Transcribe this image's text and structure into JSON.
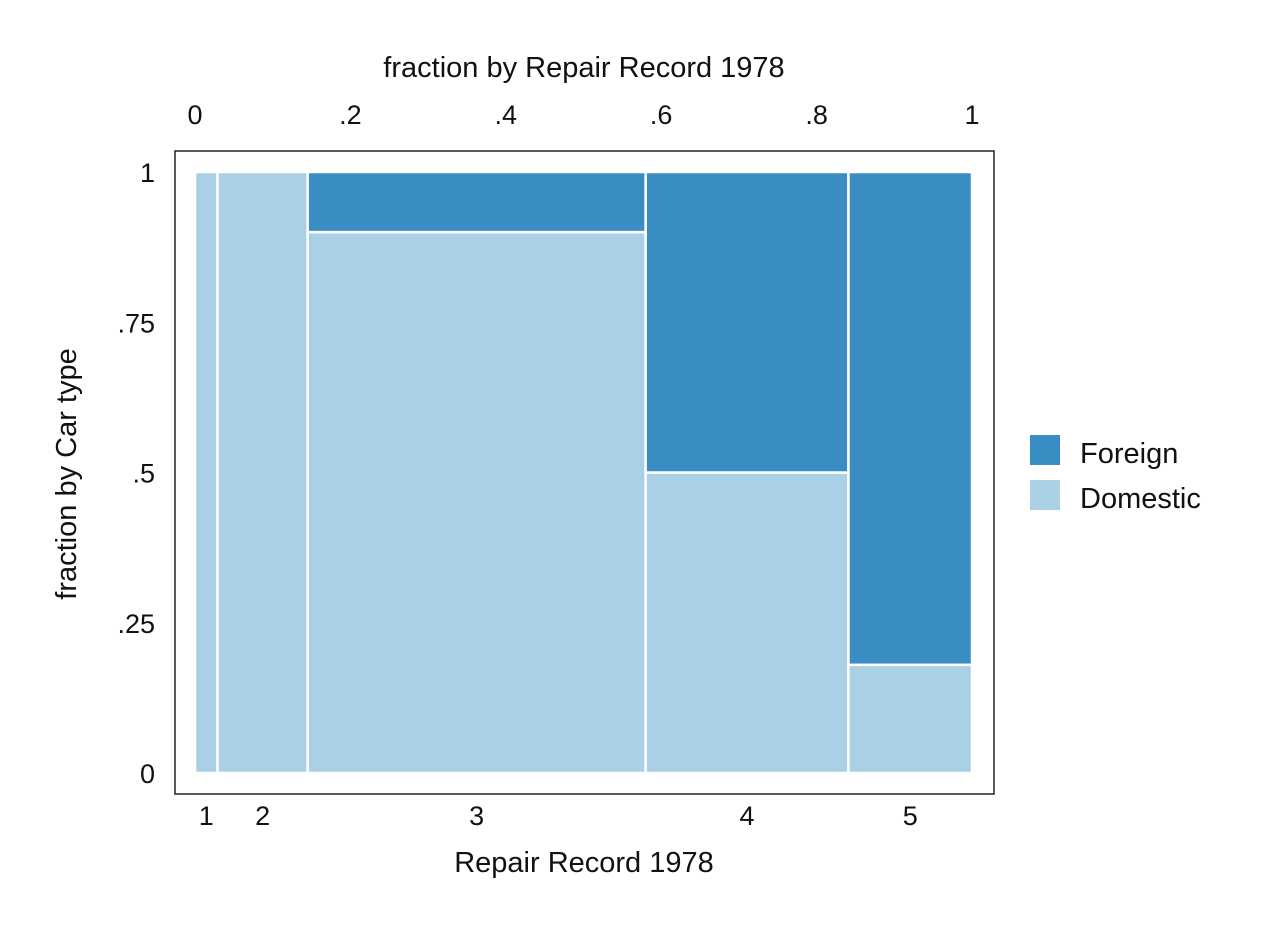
{
  "chart_data": {
    "type": "mosaic",
    "top_axis_title": "fraction by Repair Record 1978",
    "top_ticks": [
      "0",
      ".2",
      ".4",
      ".6",
      ".8",
      "1"
    ],
    "top_tick_values": [
      0,
      0.2,
      0.4,
      0.6,
      0.8,
      1
    ],
    "y_axis_title": "fraction by Car type",
    "y_ticks": [
      "0",
      ".25",
      ".5",
      ".75",
      "1"
    ],
    "y_tick_values": [
      0,
      0.25,
      0.5,
      0.75,
      1
    ],
    "x_axis_title": "Repair Record 1978",
    "categories": [
      "1",
      "2",
      "3",
      "4",
      "5"
    ],
    "category_widths": [
      0.029,
      0.116,
      0.435,
      0.261,
      0.159
    ],
    "series": [
      {
        "name": "Domestic",
        "color": "#a9d0e4",
        "values": [
          1.0,
          1.0,
          0.9,
          0.5,
          0.18
        ]
      },
      {
        "name": "Foreign",
        "color": "#3a8dc2",
        "values": [
          0.0,
          0.0,
          0.1,
          0.5,
          0.82
        ]
      }
    ],
    "legend": [
      "Foreign",
      "Domestic"
    ],
    "legend_position": "right",
    "grid": false
  }
}
